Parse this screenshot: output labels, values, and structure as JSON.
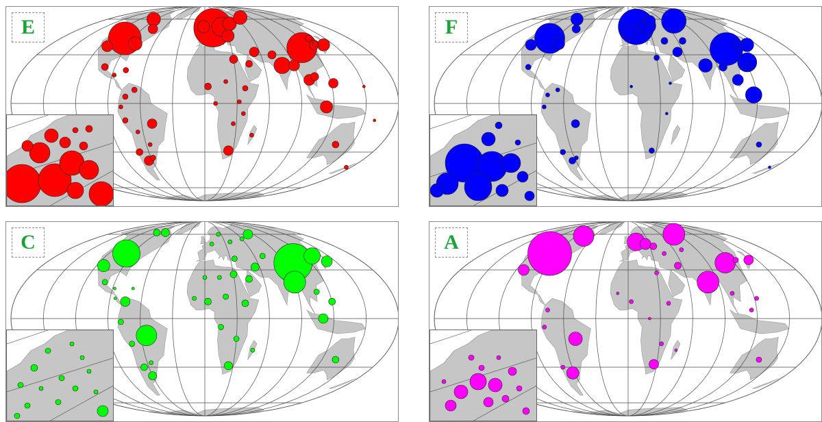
{
  "colors": {
    "land": "#c6c6c6",
    "grid": "#4a4a4a",
    "label_text": "#1ba33a"
  },
  "panels": [
    {
      "id": "E",
      "label": "E",
      "color": "#ff0000",
      "bubbles": [
        {
          "lon": -100,
          "lat": 42,
          "r": 24
        },
        {
          "lon": -82,
          "lat": 38,
          "r": 10
        },
        {
          "lon": -112,
          "lat": 36,
          "r": 8
        },
        {
          "lon": -75,
          "lat": 50,
          "r": 7
        },
        {
          "lon": -95,
          "lat": 60,
          "r": 10
        },
        {
          "lon": -100,
          "lat": 22,
          "r": 5
        },
        {
          "lon": -88,
          "lat": 17,
          "r": 3
        },
        {
          "lon": -78,
          "lat": 20,
          "r": 4
        },
        {
          "lon": -74,
          "lat": 4,
          "r": 4
        },
        {
          "lon": -78,
          "lat": -2,
          "r": 3
        },
        {
          "lon": -66,
          "lat": 8,
          "r": 4
        },
        {
          "lon": -75,
          "lat": -10,
          "r": 4
        },
        {
          "lon": -50,
          "lat": -12,
          "r": 7
        },
        {
          "lon": -70,
          "lat": -30,
          "r": 5
        },
        {
          "lon": -64,
          "lat": -36,
          "r": 7
        },
        {
          "lon": -58,
          "lat": -34,
          "r": 4
        },
        {
          "lon": -56,
          "lat": -25,
          "r": 3
        },
        {
          "lon": -65,
          "lat": -17,
          "r": 3
        },
        {
          "lon": 12,
          "lat": 51,
          "r": 28
        },
        {
          "lon": 25,
          "lat": 52,
          "r": 14
        },
        {
          "lon": -2,
          "lat": 52,
          "r": 9
        },
        {
          "lon": 30,
          "lat": 44,
          "r": 9
        },
        {
          "lon": 40,
          "lat": 55,
          "r": 10
        },
        {
          "lon": 70,
          "lat": 62,
          "r": 10
        },
        {
          "lon": 110,
          "lat": 35,
          "r": 22
        },
        {
          "lon": 130,
          "lat": 42,
          "r": 5
        },
        {
          "lon": 138,
          "lat": 37,
          "r": 9
        },
        {
          "lon": 127,
          "lat": 37,
          "r": 7
        },
        {
          "lon": 78,
          "lat": 23,
          "r": 12
        },
        {
          "lon": 72,
          "lat": 30,
          "r": 6
        },
        {
          "lon": 54,
          "lat": 32,
          "r": 7
        },
        {
          "lon": 45,
          "lat": 24,
          "r": 5
        },
        {
          "lon": 90,
          "lat": 23,
          "r": 8
        },
        {
          "lon": 100,
          "lat": 14,
          "r": 8
        },
        {
          "lon": 106,
          "lat": 16,
          "r": 6
        },
        {
          "lon": 113,
          "lat": -2,
          "r": 9
        },
        {
          "lon": 122,
          "lat": 12,
          "r": 7
        },
        {
          "lon": 130,
          "lat": 38,
          "r": 4
        },
        {
          "lon": 3,
          "lat": 10,
          "r": 5
        },
        {
          "lon": 30,
          "lat": 27,
          "r": 6
        },
        {
          "lon": 38,
          "lat": 9,
          "r": 4
        },
        {
          "lon": 25,
          "lat": -29,
          "r": 7
        },
        {
          "lon": 46,
          "lat": -19,
          "r": 3
        },
        {
          "lon": 20,
          "lat": 13,
          "r": 3
        },
        {
          "lon": 10,
          "lat": 0,
          "r": 3
        },
        {
          "lon": 32,
          "lat": 1,
          "r": 3
        },
        {
          "lon": 27,
          "lat": -12,
          "r": 3
        },
        {
          "lon": 36,
          "lat": -6,
          "r": 3
        },
        {
          "lon": 134,
          "lat": -25,
          "r": 5
        },
        {
          "lon": 174,
          "lat": -41,
          "r": 3
        },
        {
          "lon": 160,
          "lat": -10,
          "r": 2
        },
        {
          "lon": 150,
          "lat": 10,
          "r": 2
        }
      ],
      "inset_bubbles": [
        {
          "x": 22,
          "y": 100,
          "r": 28
        },
        {
          "x": 70,
          "y": 95,
          "r": 24
        },
        {
          "x": 95,
          "y": 70,
          "r": 18
        },
        {
          "x": 48,
          "y": 55,
          "r": 15
        },
        {
          "x": 120,
          "y": 80,
          "r": 14
        },
        {
          "x": 138,
          "y": 115,
          "r": 18
        },
        {
          "x": 65,
          "y": 30,
          "r": 10
        },
        {
          "x": 100,
          "y": 110,
          "r": 12
        },
        {
          "x": 85,
          "y": 40,
          "r": 8
        },
        {
          "x": 112,
          "y": 45,
          "r": 6
        },
        {
          "x": 30,
          "y": 45,
          "r": 8
        },
        {
          "x": 120,
          "y": 20,
          "r": 5
        },
        {
          "x": 100,
          "y": 22,
          "r": 4
        }
      ]
    },
    {
      "id": "F",
      "label": "F",
      "color": "#0000ff",
      "bubbles": [
        {
          "lon": -98,
          "lat": 42,
          "r": 22
        },
        {
          "lon": -82,
          "lat": 38,
          "r": 9
        },
        {
          "lon": -113,
          "lat": 37,
          "r": 8
        },
        {
          "lon": -75,
          "lat": 50,
          "r": 6
        },
        {
          "lon": -95,
          "lat": 60,
          "r": 9
        },
        {
          "lon": -100,
          "lat": 22,
          "r": 4
        },
        {
          "lon": -75,
          "lat": 5,
          "r": 3
        },
        {
          "lon": -66,
          "lat": 8,
          "r": 3
        },
        {
          "lon": -78,
          "lat": -2,
          "r": 3
        },
        {
          "lon": -50,
          "lat": -12,
          "r": 6
        },
        {
          "lon": -70,
          "lat": -30,
          "r": 4
        },
        {
          "lon": -64,
          "lat": -36,
          "r": 5
        },
        {
          "lon": -58,
          "lat": -34,
          "r": 3
        },
        {
          "lon": 12,
          "lat": 52,
          "r": 26
        },
        {
          "lon": 30,
          "lat": 53,
          "r": 12
        },
        {
          "lon": 2,
          "lat": 47,
          "r": 10
        },
        {
          "lon": 38,
          "lat": 58,
          "r": 8
        },
        {
          "lon": 80,
          "lat": 58,
          "r": 18
        },
        {
          "lon": 110,
          "lat": 34,
          "r": 24
        },
        {
          "lon": 122,
          "lat": 25,
          "r": 14
        },
        {
          "lon": 138,
          "lat": 37,
          "r": 10
        },
        {
          "lon": 128,
          "lat": 37,
          "r": 6
        },
        {
          "lon": 78,
          "lat": 23,
          "r": 10
        },
        {
          "lon": 54,
          "lat": 32,
          "r": 7
        },
        {
          "lon": 44,
          "lat": 40,
          "r": 5
        },
        {
          "lon": 66,
          "lat": 40,
          "r": 5
        },
        {
          "lon": 95,
          "lat": 22,
          "r": 6
        },
        {
          "lon": 105,
          "lat": 14,
          "r": 8
        },
        {
          "lon": 117,
          "lat": 5,
          "r": 12
        },
        {
          "lon": 120,
          "lat": 22,
          "r": 6
        },
        {
          "lon": 30,
          "lat": 28,
          "r": 4
        },
        {
          "lon": 3,
          "lat": 10,
          "r": 2
        },
        {
          "lon": 25,
          "lat": -29,
          "r": 4
        },
        {
          "lon": 36,
          "lat": -6,
          "r": 2
        },
        {
          "lon": 134,
          "lat": -25,
          "r": 4
        },
        {
          "lon": 174,
          "lat": -41,
          "r": 2
        },
        {
          "lon": 40,
          "lat": 12,
          "r": 2
        }
      ],
      "inset_bubbles": [
        {
          "x": 50,
          "y": 70,
          "r": 28
        },
        {
          "x": 90,
          "y": 75,
          "r": 22
        },
        {
          "x": 70,
          "y": 105,
          "r": 20
        },
        {
          "x": 118,
          "y": 70,
          "r": 14
        },
        {
          "x": 25,
          "y": 100,
          "r": 16
        },
        {
          "x": 85,
          "y": 35,
          "r": 10
        },
        {
          "x": 105,
          "y": 110,
          "r": 9
        },
        {
          "x": 135,
          "y": 90,
          "r": 8
        },
        {
          "x": 145,
          "y": 118,
          "r": 7
        },
        {
          "x": 10,
          "y": 110,
          "r": 10
        },
        {
          "x": 100,
          "y": 15,
          "r": 5
        },
        {
          "x": 128,
          "y": 40,
          "r": 4
        }
      ]
    },
    {
      "id": "C",
      "label": "C",
      "color": "#00ff00",
      "bubbles": [
        {
          "lon": -98,
          "lat": 42,
          "r": 20
        },
        {
          "lon": -112,
          "lat": 33,
          "r": 9
        },
        {
          "lon": -95,
          "lat": 62,
          "r": 5
        },
        {
          "lon": -78,
          "lat": 62,
          "r": 6
        },
        {
          "lon": -100,
          "lat": 22,
          "r": 4
        },
        {
          "lon": -88,
          "lat": 18,
          "r": 2
        },
        {
          "lon": -75,
          "lat": 10,
          "r": 7
        },
        {
          "lon": -78,
          "lat": -2,
          "r": 4
        },
        {
          "lon": -55,
          "lat": -10,
          "r": 15
        },
        {
          "lon": -70,
          "lat": -15,
          "r": 4
        },
        {
          "lon": -65,
          "lat": -30,
          "r": 5
        },
        {
          "lon": -60,
          "lat": -36,
          "r": 6
        },
        {
          "lon": -56,
          "lat": -27,
          "r": 3
        },
        {
          "lon": -85,
          "lat": 12,
          "r": 2
        },
        {
          "lon": -70,
          "lat": 18,
          "r": 2
        },
        {
          "lon": 100,
          "lat": 35,
          "r": 28
        },
        {
          "lon": 90,
          "lat": 22,
          "r": 16
        },
        {
          "lon": 130,
          "lat": 40,
          "r": 12
        },
        {
          "lon": 140,
          "lat": 36,
          "r": 8
        },
        {
          "lon": 120,
          "lat": 10,
          "r": 5
        },
        {
          "lon": 110,
          "lat": 0,
          "r": 7
        },
        {
          "lon": 108,
          "lat": 16,
          "r": 4
        },
        {
          "lon": 80,
          "lat": 60,
          "r": 7
        },
        {
          "lon": 55,
          "lat": 32,
          "r": 6
        },
        {
          "lon": 70,
          "lat": 40,
          "r": 4
        },
        {
          "lon": 45,
          "lat": 24,
          "r": 5
        },
        {
          "lon": 30,
          "lat": 27,
          "r": 5
        },
        {
          "lon": 35,
          "lat": 38,
          "r": 4
        },
        {
          "lon": 38,
          "lat": 52,
          "r": 3
        },
        {
          "lon": 10,
          "lat": 50,
          "r": 3
        },
        {
          "lon": 3,
          "lat": 10,
          "r": 5
        },
        {
          "lon": 20,
          "lat": 13,
          "r": 4
        },
        {
          "lon": 38,
          "lat": 9,
          "r": 5
        },
        {
          "lon": 25,
          "lat": -29,
          "r": 6
        },
        {
          "lon": 30,
          "lat": -12,
          "r": 4
        },
        {
          "lon": 15,
          "lat": -5,
          "r": 4
        },
        {
          "lon": 47,
          "lat": -19,
          "r": 3
        },
        {
          "lon": -10,
          "lat": 12,
          "r": 3
        },
        {
          "lon": 0,
          "lat": 25,
          "r": 3
        },
        {
          "lon": 15,
          "lat": 25,
          "r": 3
        },
        {
          "lon": 134,
          "lat": -25,
          "r": 5
        },
        {
          "lon": 60,
          "lat": 55,
          "r": 3
        },
        {
          "lon": 25,
          "lat": 60,
          "r": 3
        }
      ],
      "inset_bubbles": [
        {
          "x": 40,
          "y": 55,
          "r": 5
        },
        {
          "x": 80,
          "y": 70,
          "r": 4
        },
        {
          "x": 100,
          "y": 85,
          "r": 4
        },
        {
          "x": 60,
          "y": 30,
          "r": 4
        },
        {
          "x": 20,
          "y": 80,
          "r": 4
        },
        {
          "x": 75,
          "y": 105,
          "r": 4
        },
        {
          "x": 120,
          "y": 60,
          "r": 3
        },
        {
          "x": 140,
          "y": 118,
          "r": 8
        },
        {
          "x": 110,
          "y": 40,
          "r": 3
        },
        {
          "x": 30,
          "y": 110,
          "r": 4
        },
        {
          "x": 95,
          "y": 20,
          "r": 3
        },
        {
          "x": 50,
          "y": 85,
          "r": 3
        },
        {
          "x": 130,
          "y": 90,
          "r": 3
        },
        {
          "x": 15,
          "y": 125,
          "r": 4
        }
      ]
    },
    {
      "id": "A",
      "label": "A",
      "color": "#ff00ff",
      "bubbles": [
        {
          "lon": -98,
          "lat": 42,
          "r": 32
        },
        {
          "lon": -78,
          "lat": 58,
          "r": 15
        },
        {
          "lon": -112,
          "lat": 30,
          "r": 8
        },
        {
          "lon": -75,
          "lat": 5,
          "r": 3
        },
        {
          "lon": -50,
          "lat": -12,
          "r": 10
        },
        {
          "lon": -62,
          "lat": -34,
          "r": 9
        },
        {
          "lon": -70,
          "lat": -30,
          "r": 3
        },
        {
          "lon": -78,
          "lat": -5,
          "r": 3
        },
        {
          "lon": 12,
          "lat": 52,
          "r": 13
        },
        {
          "lon": 25,
          "lat": 50,
          "r": 8
        },
        {
          "lon": 35,
          "lat": 48,
          "r": 5
        },
        {
          "lon": 85,
          "lat": 60,
          "r": 16
        },
        {
          "lon": 110,
          "lat": 35,
          "r": 15
        },
        {
          "lon": 80,
          "lat": 22,
          "r": 16
        },
        {
          "lon": 140,
          "lat": 37,
          "r": 7
        },
        {
          "lon": 125,
          "lat": 37,
          "r": 4
        },
        {
          "lon": 55,
          "lat": 33,
          "r": 5
        },
        {
          "lon": 45,
          "lat": 42,
          "r": 3
        },
        {
          "lon": 70,
          "lat": 45,
          "r": 3
        },
        {
          "lon": 100,
          "lat": 15,
          "r": 3
        },
        {
          "lon": 115,
          "lat": 5,
          "r": 3
        },
        {
          "lon": 30,
          "lat": 28,
          "r": 3
        },
        {
          "lon": 3,
          "lat": 10,
          "r": 3
        },
        {
          "lon": 38,
          "lat": 9,
          "r": 3
        },
        {
          "lon": 27,
          "lat": -28,
          "r": 7
        },
        {
          "lon": 32,
          "lat": -15,
          "r": 3
        },
        {
          "lon": 20,
          "lat": 0,
          "r": 2
        },
        {
          "lon": 134,
          "lat": -25,
          "r": 4
        },
        {
          "lon": 47,
          "lat": -19,
          "r": 2
        },
        {
          "lon": -10,
          "lat": 15,
          "r": 2
        },
        {
          "lon": 122,
          "lat": 12,
          "r": 3
        }
      ],
      "inset_bubbles": [
        {
          "x": 70,
          "y": 75,
          "r": 12
        },
        {
          "x": 95,
          "y": 80,
          "r": 10
        },
        {
          "x": 45,
          "y": 90,
          "r": 10
        },
        {
          "x": 120,
          "y": 60,
          "r": 6
        },
        {
          "x": 85,
          "y": 105,
          "r": 7
        },
        {
          "x": 30,
          "y": 110,
          "r": 8
        },
        {
          "x": 110,
          "y": 100,
          "r": 5
        },
        {
          "x": 60,
          "y": 40,
          "r": 4
        },
        {
          "x": 140,
          "y": 118,
          "r": 5
        },
        {
          "x": 100,
          "y": 40,
          "r": 3
        },
        {
          "x": 20,
          "y": 75,
          "r": 3
        },
        {
          "x": 130,
          "y": 85,
          "r": 4
        },
        {
          "x": 75,
          "y": 55,
          "r": 4
        }
      ]
    }
  ]
}
